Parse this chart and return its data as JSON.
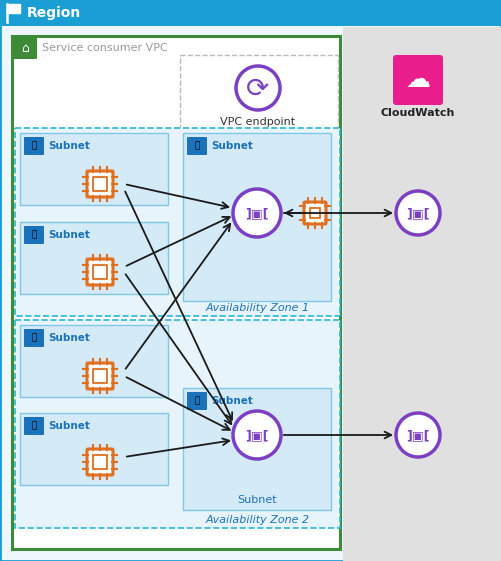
{
  "title": "Region",
  "vpc_label": "Service consumer VPC",
  "az1_label": "Availability Zone 1",
  "az2_label": "Availability Zone 2",
  "cloudwatch_label": "CloudWatch",
  "vpc_endpoint_label": "VPC endpoint",
  "subnet_label": "Subnet",
  "region_header_color": "#1a9ed4",
  "region_bg": "#eef7fc",
  "vpc_border_color": "#3d8b37",
  "vpc_bg": "#ffffff",
  "az_border_color": "#29b6d1",
  "az_bg": "#e8f4fb",
  "subnet_bg": "#d5eaf7",
  "subnet_border_color": "#7ec8e3",
  "subnet_label_color": "#1a72bb",
  "subnet_icon_color": "#1a72bb",
  "right_panel_bg": "#e0e0e0",
  "vpc_endpoint_color": "#7b3fc4",
  "cloudwatch_bg": "#e91e8c",
  "arrow_color": "#1a1a1a",
  "chip_color": "#e07020",
  "interface_endpoint_color": "#7b3fc4",
  "dashed_box_color": "#aaaaaa",
  "green_icon_bg": "#3d8b37"
}
